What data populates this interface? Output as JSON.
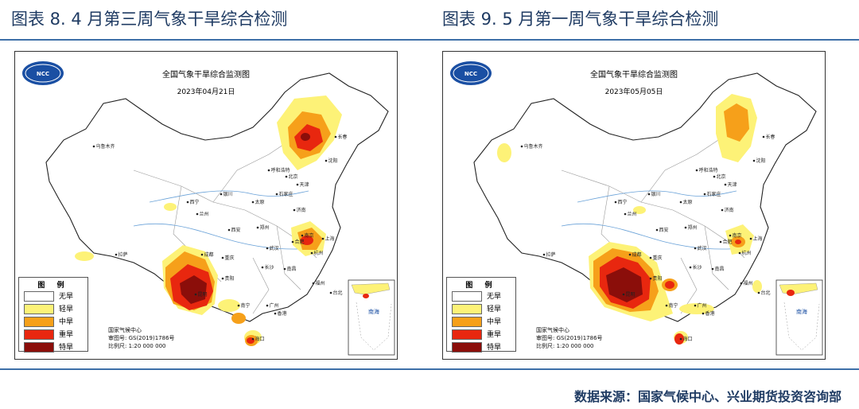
{
  "figures": [
    {
      "caption": "图表 8. 4 月第三周气象干旱综合检测",
      "map_title": "全国气象干旱综合监测图",
      "map_date": "2023年04月21日",
      "logo": "NCC",
      "legend_title": "图 例",
      "legend": [
        {
          "label": "无旱",
          "color": "#ffffff"
        },
        {
          "label": "轻旱",
          "color": "#fdf277"
        },
        {
          "label": "中旱",
          "color": "#f6a01a"
        },
        {
          "label": "重旱",
          "color": "#e8270f"
        },
        {
          "label": "特旱",
          "color": "#8b0e0a"
        }
      ],
      "credit_org": "国家气候中心",
      "credit_review": "审图号: GS(2019)1786号",
      "credit_scale": "比例尺: 1:20 000 000",
      "inset_label": "南海",
      "cities": [
        "乌鲁木齐",
        "呼和浩特",
        "北京",
        "天津",
        "沈阳",
        "长春",
        "西宁",
        "兰州",
        "银川",
        "太原",
        "石家庄",
        "济南",
        "西安",
        "郑州",
        "合肥",
        "南京",
        "上海",
        "杭州",
        "武汉",
        "成都",
        "重庆",
        "长沙",
        "南昌",
        "福州",
        "贵阳",
        "昆明",
        "南宁",
        "广州",
        "台北",
        "香港",
        "海口",
        "拉萨"
      ]
    },
    {
      "caption": "图表 9. 5 月第一周气象干旱综合检测",
      "map_title": "全国气象干旱综合监测图",
      "map_date": "2023年05月05日",
      "logo": "NCC",
      "legend_title": "图 例",
      "legend": [
        {
          "label": "无旱",
          "color": "#ffffff"
        },
        {
          "label": "轻旱",
          "color": "#fdf277"
        },
        {
          "label": "中旱",
          "color": "#f6a01a"
        },
        {
          "label": "重旱",
          "color": "#e8270f"
        },
        {
          "label": "特旱",
          "color": "#8b0e0a"
        }
      ],
      "credit_org": "国家气候中心",
      "credit_review": "审图号: GS(2019)1786号",
      "credit_scale": "比例尺: 1:20 000 000",
      "inset_label": "南海",
      "cities": [
        "乌鲁木齐",
        "呼和浩特",
        "北京",
        "天津",
        "沈阳",
        "长春",
        "西宁",
        "兰州",
        "银川",
        "太原",
        "石家庄",
        "济南",
        "西安",
        "郑州",
        "合肥",
        "南京",
        "上海",
        "杭州",
        "武汉",
        "成都",
        "重庆",
        "长沙",
        "南昌",
        "福州",
        "贵阳",
        "昆明",
        "南宁",
        "广州",
        "台北",
        "香港",
        "海口",
        "拉萨"
      ]
    }
  ],
  "source": "数据来源：国家气候中心、兴业期货投资咨询部",
  "colors": {
    "accent": "#3d6fa8",
    "caption": "#1f3b63",
    "logo": "#1a4fa3"
  }
}
